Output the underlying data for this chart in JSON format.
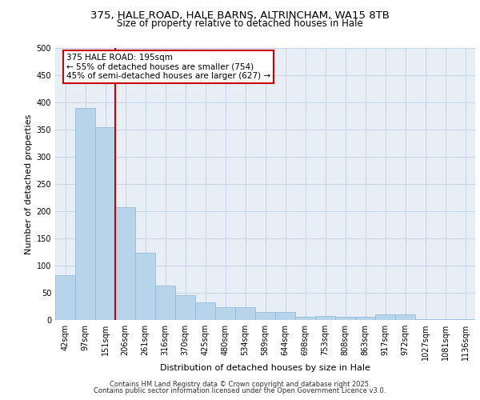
{
  "title_line1": "375, HALE ROAD, HALE BARNS, ALTRINCHAM, WA15 8TB",
  "title_line2": "Size of property relative to detached houses in Hale",
  "xlabel": "Distribution of detached houses by size in Hale",
  "ylabel": "Number of detached properties",
  "categories": [
    "42sqm",
    "97sqm",
    "151sqm",
    "206sqm",
    "261sqm",
    "316sqm",
    "370sqm",
    "425sqm",
    "480sqm",
    "534sqm",
    "589sqm",
    "644sqm",
    "698sqm",
    "753sqm",
    "808sqm",
    "863sqm",
    "917sqm",
    "972sqm",
    "1027sqm",
    "1081sqm",
    "1136sqm"
  ],
  "values": [
    82,
    390,
    355,
    207,
    124,
    63,
    46,
    32,
    23,
    23,
    14,
    14,
    6,
    8,
    6,
    6,
    10,
    10,
    2,
    1,
    1
  ],
  "bar_color": "#b8d4ea",
  "bar_edge_color": "#8ab4d4",
  "grid_color": "#c8d4e4",
  "bg_color": "#e8eef6",
  "property_label": "375 HALE ROAD: 195sqm",
  "annotation_line1": "← 55% of detached houses are smaller (754)",
  "annotation_line2": "45% of semi-detached houses are larger (627) →",
  "vline_x": 2.5,
  "annotation_box_color": "#ffffff",
  "annotation_box_edge": "#cc0000",
  "vline_color": "#cc0000",
  "footer_line1": "Contains HM Land Registry data © Crown copyright and database right 2025.",
  "footer_line2": "Contains public sector information licensed under the Open Government Licence v3.0.",
  "ylim": [
    0,
    500
  ],
  "yticks": [
    0,
    50,
    100,
    150,
    200,
    250,
    300,
    350,
    400,
    450,
    500
  ],
  "title_fontsize": 9.5,
  "subtitle_fontsize": 8.5,
  "tick_fontsize": 7,
  "axis_label_fontsize": 8,
  "footer_fontsize": 6,
  "annotation_fontsize": 7.5
}
